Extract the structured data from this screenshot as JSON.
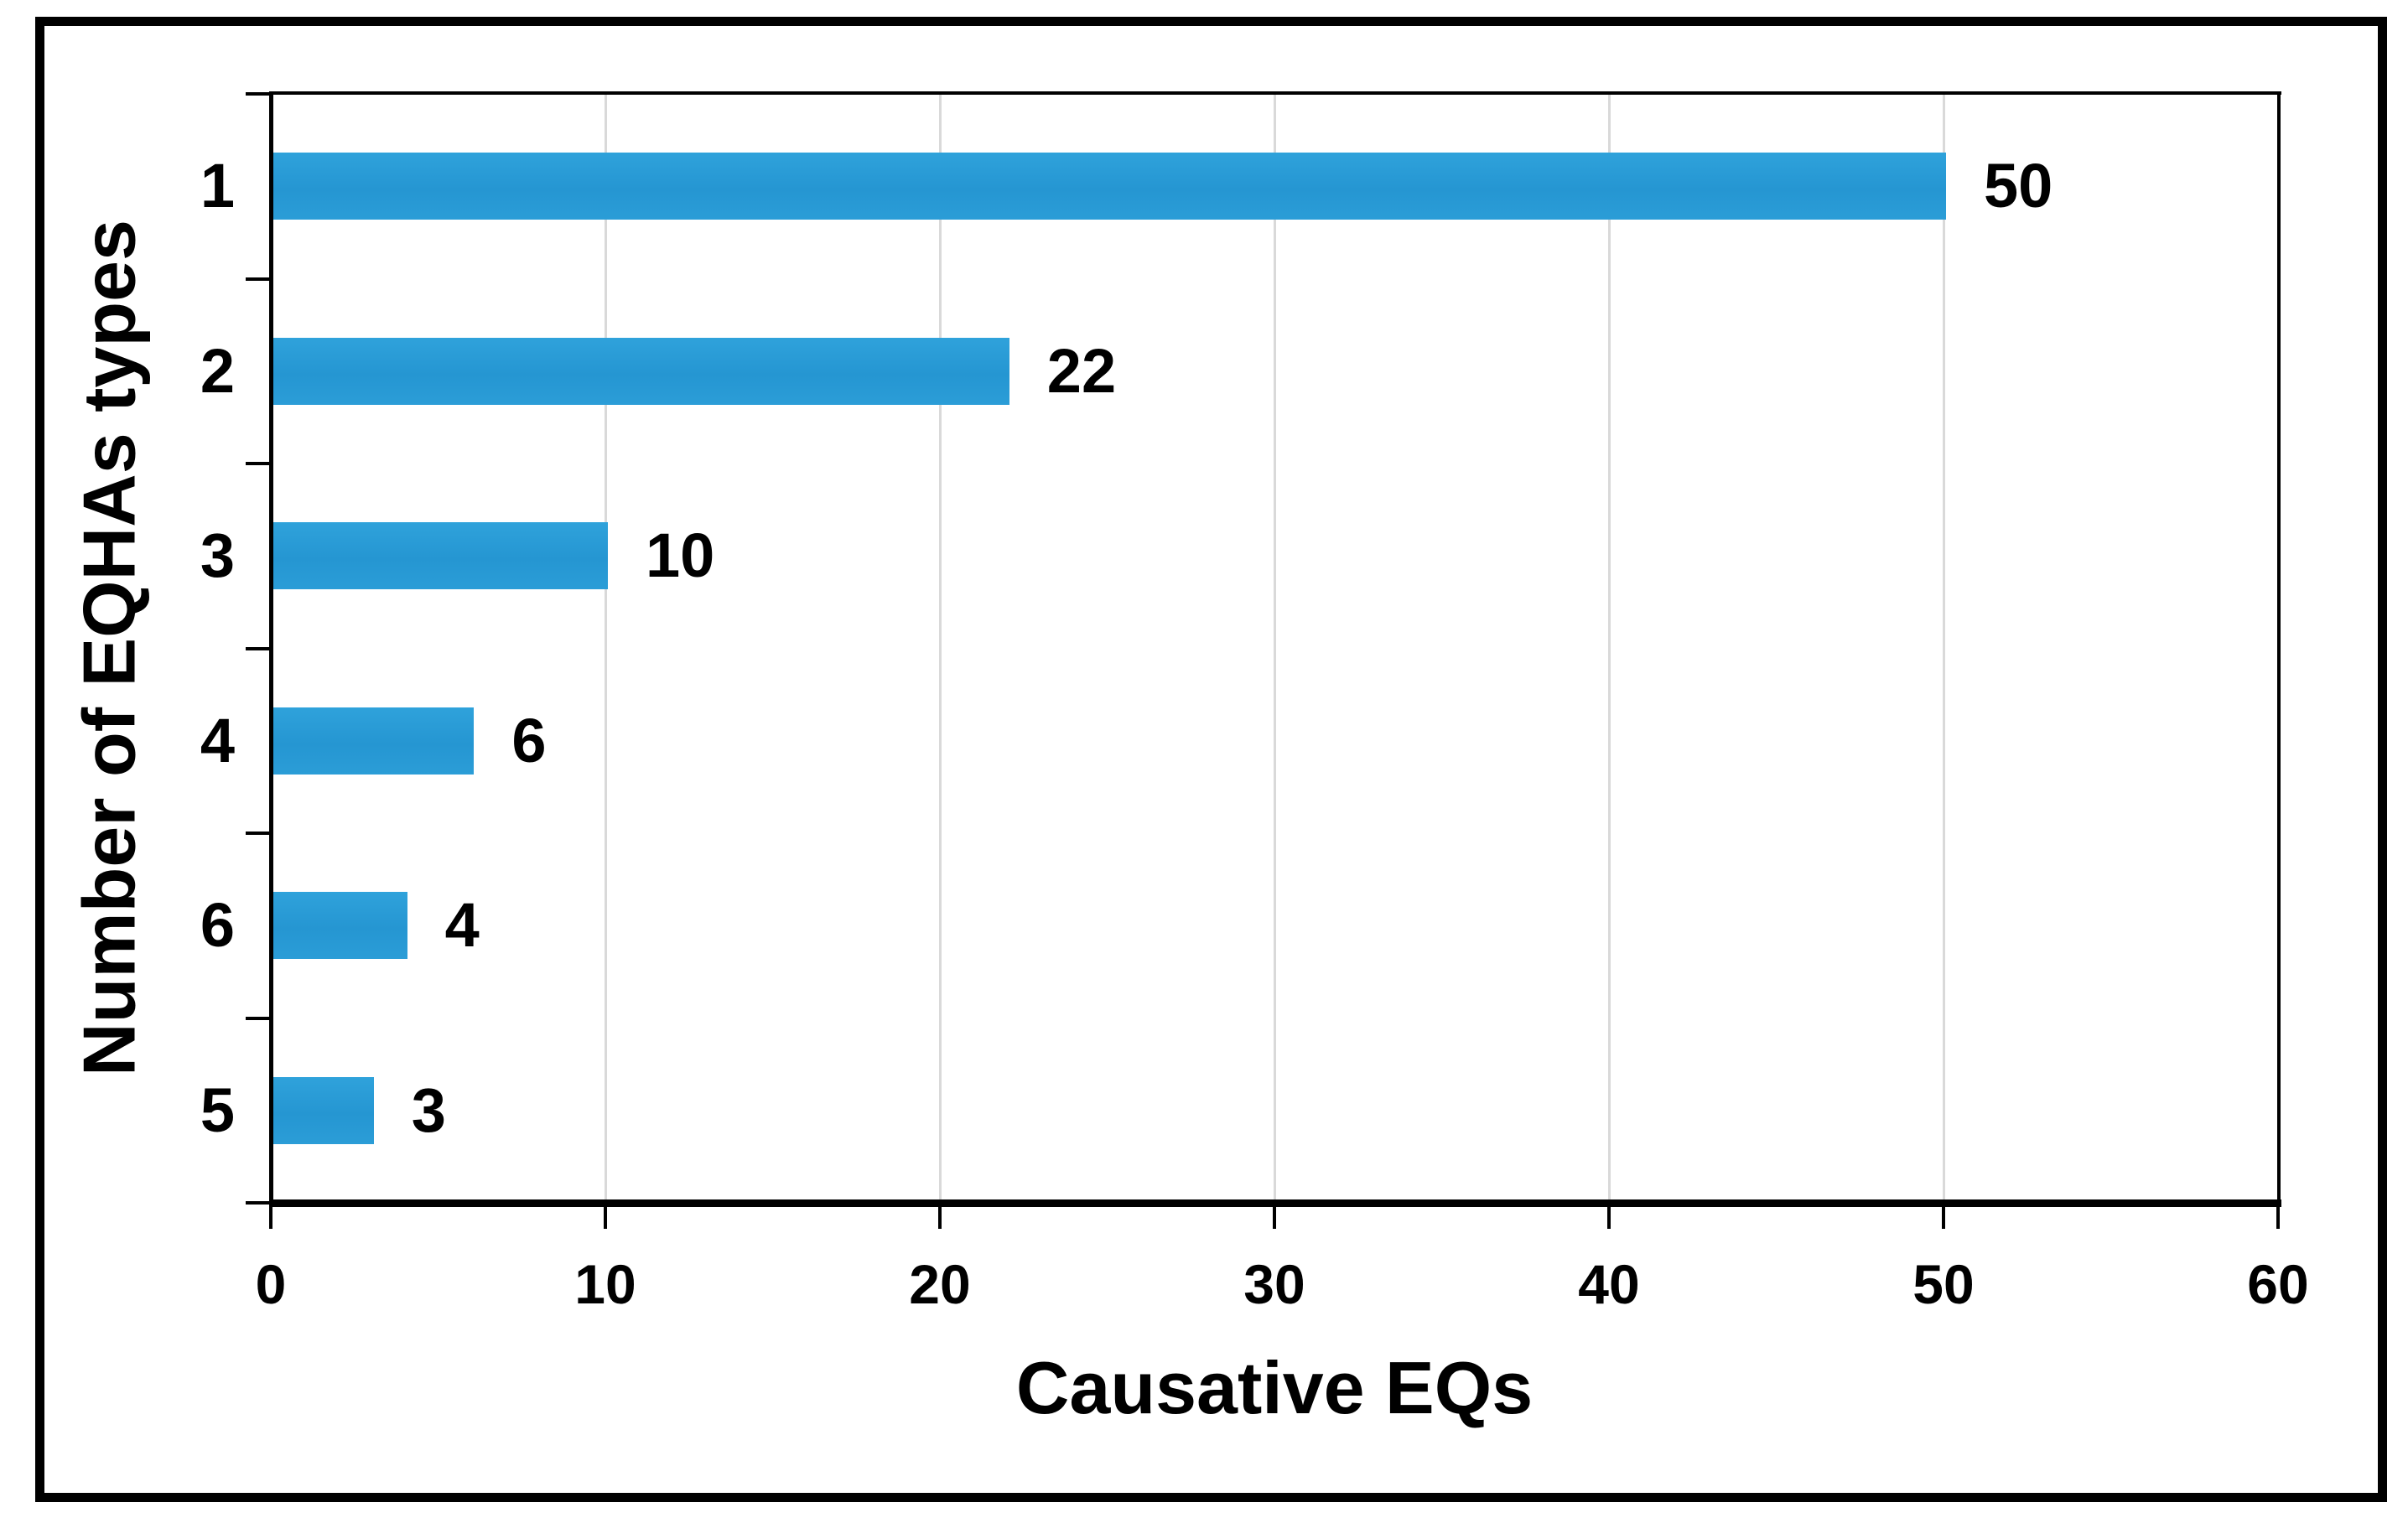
{
  "figure": {
    "background": "#ffffff",
    "border_color": "#000000"
  },
  "chart_data": {
    "type": "bar",
    "orientation": "horizontal",
    "title": "",
    "xlabel": "Causative EQs",
    "ylabel": "Number of EQHAs types",
    "categories": [
      "1",
      "2",
      "3",
      "4",
      "6",
      "5"
    ],
    "values": [
      50,
      22,
      10,
      6,
      4,
      3
    ],
    "data_labels": [
      "50",
      "22",
      "10",
      "6",
      "4",
      "3"
    ],
    "x_ticks": [
      "0",
      "10",
      "20",
      "30",
      "40",
      "50",
      "60"
    ],
    "xlim": [
      0,
      60
    ],
    "grid": "vertical-major",
    "legend": "none",
    "bar_color": "#2a9cd8",
    "gridline_color": "#d9d9d9",
    "axis_color": "#000000",
    "text_color": "#000000"
  }
}
